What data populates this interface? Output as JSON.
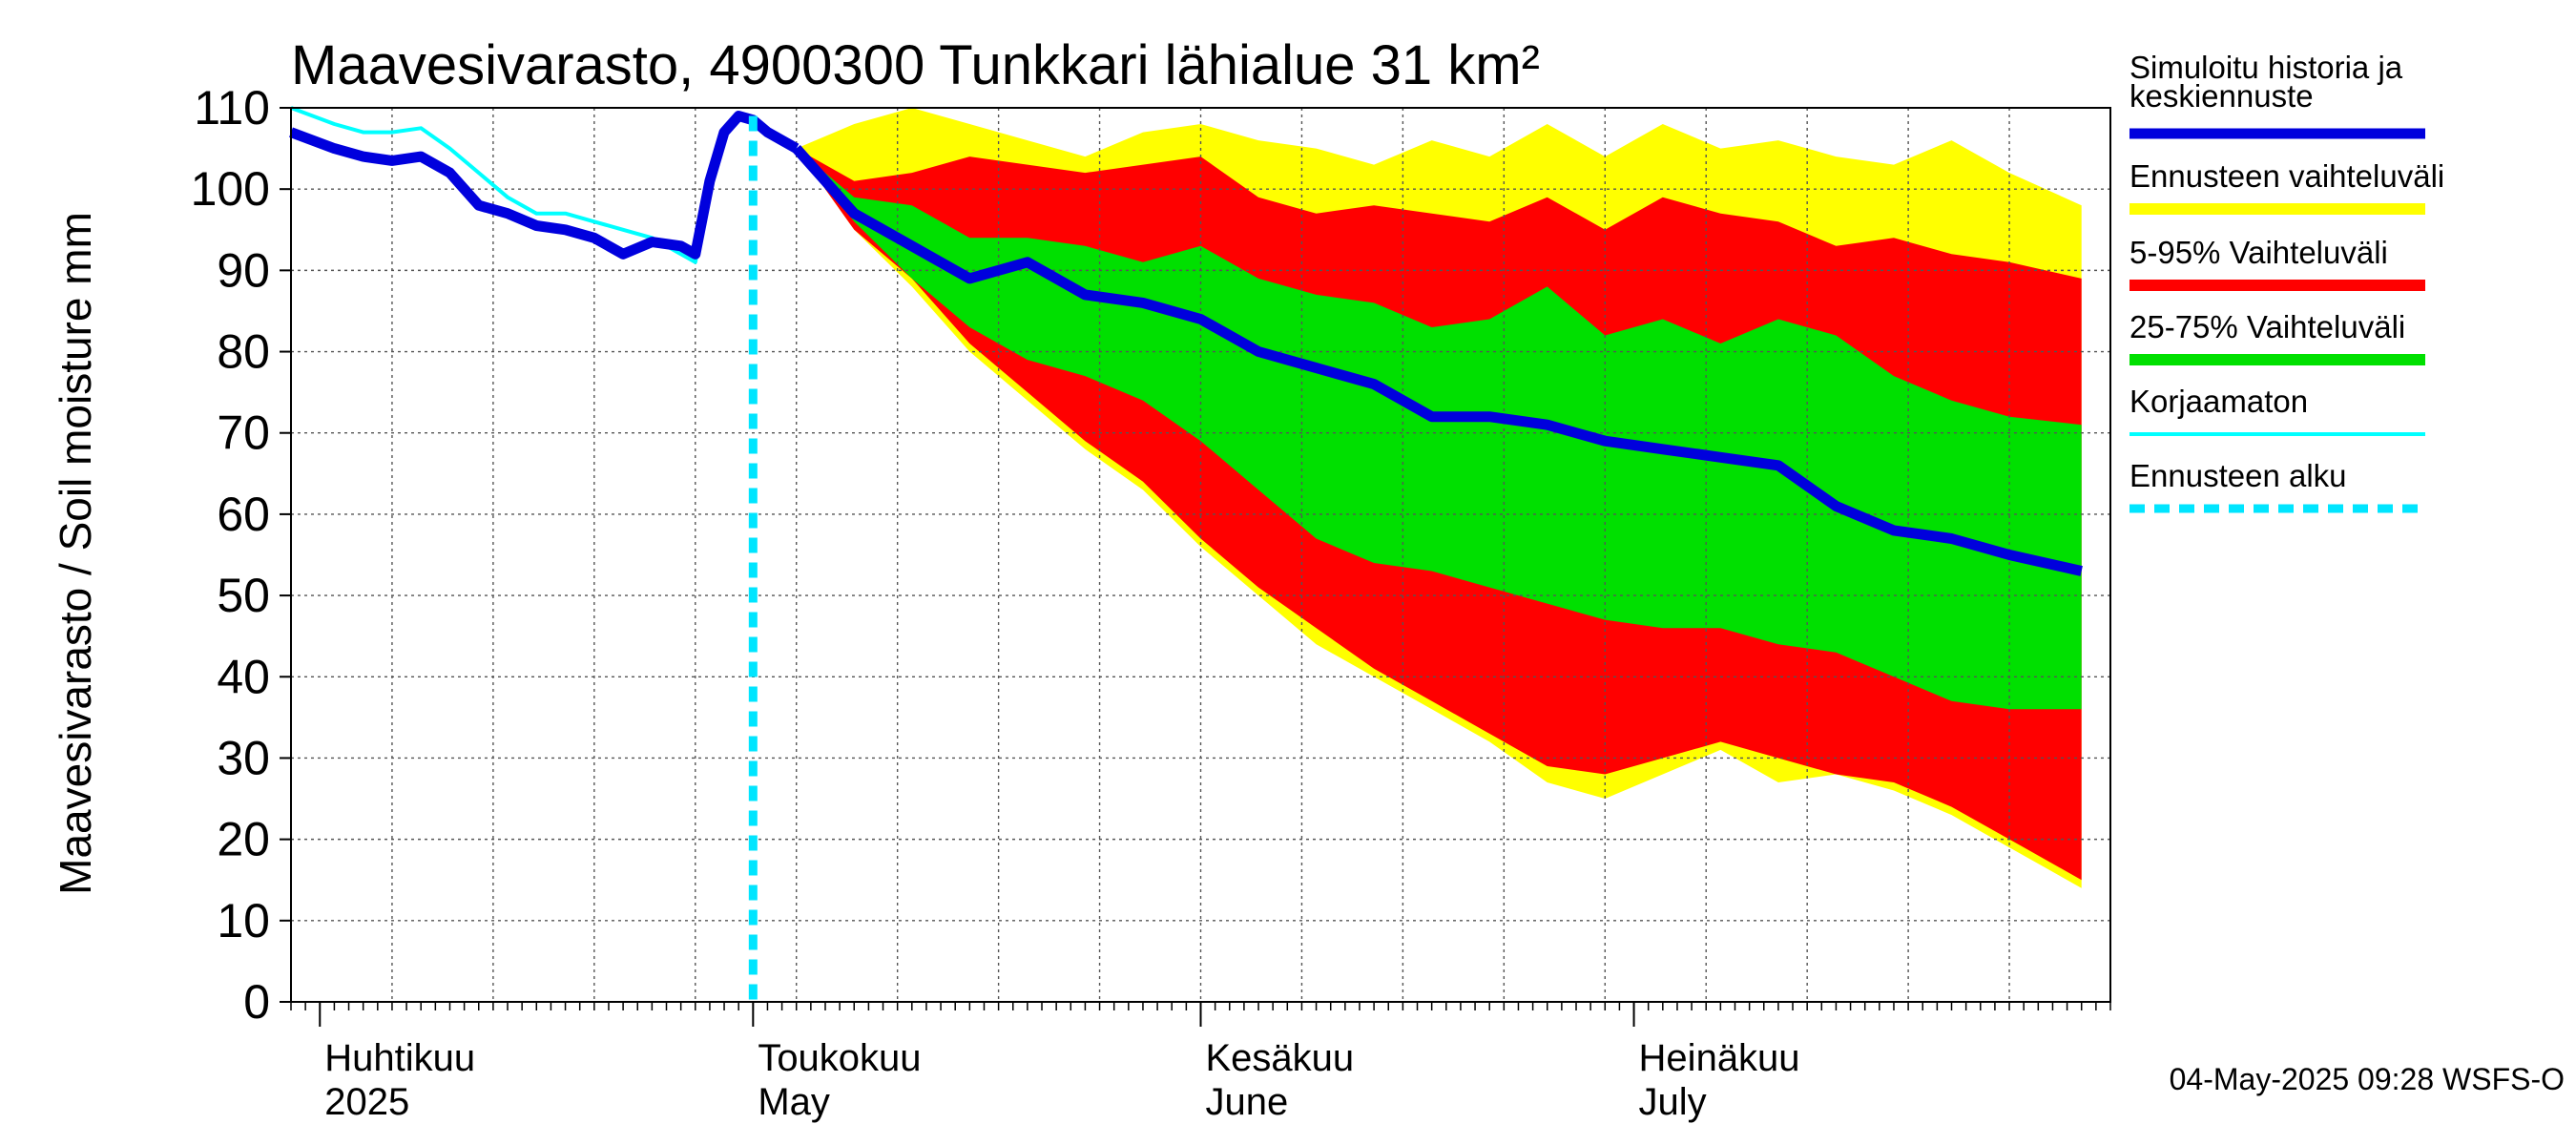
{
  "chart_data": {
    "type": "area",
    "title": "Maavesivarasto, 4900300 Tunkkari lähialue 31 km²",
    "ylabel": "Maavesivarasto / Soil moisture   mm",
    "ylim": [
      0,
      110
    ],
    "yticks": [
      0,
      10,
      20,
      30,
      40,
      50,
      60,
      70,
      80,
      90,
      100,
      110
    ],
    "xlim": [
      "2025-03-30",
      "2025-08-03"
    ],
    "grid": true,
    "months": [
      {
        "date": "2025-04-01",
        "line1": "Huhtikuu",
        "line2": "2025"
      },
      {
        "date": "2025-05-01",
        "line1": "Toukokuu",
        "line2": "May"
      },
      {
        "date": "2025-06-01",
        "line1": "Kesäkuu",
        "line2": "June"
      },
      {
        "date": "2025-07-01",
        "line1": "Heinäkuu",
        "line2": "July"
      }
    ],
    "forecast_start": "2025-05-01",
    "history": {
      "x": [
        "2025-03-30",
        "2025-04-02",
        "2025-04-04",
        "2025-04-06",
        "2025-04-08",
        "2025-04-10",
        "2025-04-12",
        "2025-04-14",
        "2025-04-16",
        "2025-04-18",
        "2025-04-20",
        "2025-04-22",
        "2025-04-24",
        "2025-04-26",
        "2025-04-27",
        "2025-04-28",
        "2025-04-29",
        "2025-04-30",
        "2025-05-01",
        "2025-05-02",
        "2025-05-03",
        "2025-05-04"
      ],
      "simulated": [
        107,
        105,
        104,
        103.5,
        104,
        102,
        98,
        97,
        95.5,
        95,
        94,
        92,
        93.5,
        93,
        92,
        101,
        107,
        109,
        108.5,
        107,
        106,
        105
      ],
      "uncorrected": [
        110,
        108,
        107,
        107,
        107.5,
        105,
        102,
        99,
        97,
        97,
        96,
        95,
        94,
        92,
        91,
        100,
        107,
        109,
        108.5,
        107,
        106,
        105
      ]
    },
    "forecast": {
      "x": [
        "2025-05-04",
        "2025-05-08",
        "2025-05-12",
        "2025-05-16",
        "2025-05-20",
        "2025-05-24",
        "2025-05-28",
        "2025-06-01",
        "2025-06-05",
        "2025-06-09",
        "2025-06-13",
        "2025-06-17",
        "2025-06-21",
        "2025-06-25",
        "2025-06-29",
        "2025-07-03",
        "2025-07-07",
        "2025-07-11",
        "2025-07-15",
        "2025-07-19",
        "2025-07-23",
        "2025-07-27",
        "2025-08-01"
      ],
      "range_max": [
        105,
        108,
        110,
        108,
        106,
        104,
        107,
        108,
        106,
        105,
        103,
        106,
        104,
        108,
        104,
        108,
        105,
        106,
        104,
        103,
        106,
        102,
        98
      ],
      "range_min": [
        105,
        95,
        88,
        80,
        74,
        68,
        63,
        56,
        50,
        44,
        40,
        36,
        32,
        27,
        25,
        28,
        31,
        27,
        28,
        26,
        23,
        19,
        14
      ],
      "p95": [
        105,
        101,
        102,
        104,
        103,
        102,
        103,
        104,
        99,
        97,
        98,
        97,
        96,
        99,
        95,
        99,
        97,
        96,
        93,
        94,
        92,
        91,
        89
      ],
      "p5": [
        105,
        95,
        89,
        81,
        75,
        69,
        64,
        57,
        51,
        46,
        41,
        37,
        33,
        29,
        28,
        30,
        32,
        30,
        28,
        27,
        24,
        20,
        15
      ],
      "p75": [
        105,
        99,
        98,
        94,
        94,
        93,
        91,
        93,
        89,
        87,
        86,
        83,
        84,
        88,
        82,
        84,
        81,
        84,
        82,
        77,
        74,
        72,
        71
      ],
      "p25": [
        105,
        96,
        89,
        83,
        79,
        77,
        74,
        69,
        63,
        57,
        54,
        53,
        51,
        49,
        47,
        46,
        46,
        44,
        43,
        40,
        37,
        36,
        36
      ],
      "median": [
        105,
        97,
        93,
        89,
        91,
        87,
        86,
        84,
        80,
        78,
        76,
        72,
        72,
        71,
        69,
        68,
        67,
        66,
        61,
        58,
        57,
        55,
        53
      ]
    },
    "legend": [
      {
        "label": "Simuloitu historia ja keskiennuste",
        "line1": "Simuloitu historia ja",
        "line2": "keskiennuste",
        "color": "#0000dd",
        "style": "thick-line"
      },
      {
        "label": "Ennusteen vaihteluväli",
        "color": "#ffff00",
        "style": "band"
      },
      {
        "label": "5-95% Vaihteluväli",
        "color": "#ff0000",
        "style": "band"
      },
      {
        "label": "25-75% Vaihteluväli",
        "color": "#00e000",
        "style": "band"
      },
      {
        "label": "Korjaamaton",
        "color": "#00ffff",
        "style": "thin-line"
      },
      {
        "label": "Ennusteen alku",
        "color": "#00e5ff",
        "style": "dashed-line"
      }
    ],
    "legend_position": "right",
    "timestamp": "04-May-2025 09:28 WSFS-O"
  }
}
